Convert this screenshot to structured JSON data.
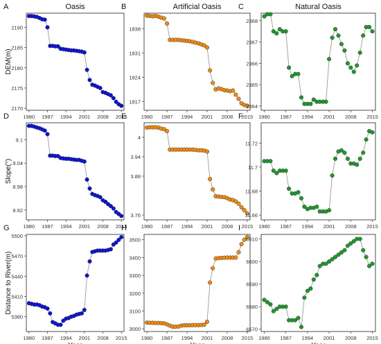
{
  "colors": {
    "oasis": "#0b12d6",
    "artificial": "#f28c0f",
    "natural": "#1d9a2c",
    "line": "#9a9a9a",
    "frame": "#222222"
  },
  "columns": [
    "Oasis",
    "Artificial Oasis",
    "Natural Oasis"
  ],
  "row_labels": [
    "DEM(m)",
    "Slope(°)",
    "Distance to River(m)"
  ],
  "xlabel": "Year",
  "x_ticks": [
    1980,
    1987,
    1994,
    2001,
    2008,
    2015
  ],
  "chart_data": [
    {
      "panel": "A",
      "type": "scatter",
      "title": "Oasis",
      "ylabel": "DEM(m)",
      "xlabel": "",
      "xlim": [
        1979,
        2016
      ],
      "ylim": [
        2169.5,
        2193.5
      ],
      "y_ticks": [
        2170,
        2175,
        2180,
        2185,
        2190
      ],
      "color": "oasis",
      "x": [
        1980,
        1981,
        1982,
        1983,
        1984,
        1985,
        1986,
        1987,
        1988,
        1989,
        1990,
        1991,
        1992,
        1993,
        1994,
        1995,
        1996,
        1997,
        1998,
        1999,
        2000,
        2001,
        2002,
        2003,
        2004,
        2005,
        2006,
        2007,
        2008,
        2009,
        2010,
        2011,
        2012,
        2013,
        2014,
        2015
      ],
      "y": [
        2192.8,
        2192.8,
        2192.7,
        2192.6,
        2192.3,
        2192.0,
        2191.9,
        2190.0,
        2185.4,
        2185.4,
        2185.3,
        2185.3,
        2184.7,
        2184.6,
        2184.5,
        2184.4,
        2184.3,
        2184.3,
        2184.2,
        2184.1,
        2184.0,
        2183.8,
        2179.5,
        2177.0,
        2175.8,
        2175.6,
        2175.3,
        2175.0,
        2174.0,
        2173.8,
        2173.5,
        2173.2,
        2172.5,
        2171.6,
        2171.0,
        2170.6
      ]
    },
    {
      "panel": "B",
      "type": "scatter",
      "title": "Artificial Oasis",
      "ylabel": "",
      "xlabel": "",
      "xlim": [
        1979,
        2016
      ],
      "ylim": [
        1814.5,
        1842.5
      ],
      "y_ticks": [
        1817,
        1824,
        1831,
        1838
      ],
      "color": "artificial",
      "x": [
        1980,
        1981,
        1982,
        1983,
        1984,
        1985,
        1986,
        1987,
        1988,
        1989,
        1990,
        1991,
        1992,
        1993,
        1994,
        1995,
        1996,
        1997,
        1998,
        1999,
        2000,
        2001,
        2002,
        2003,
        2004,
        2005,
        2006,
        2007,
        2008,
        2009,
        2010,
        2011,
        2012,
        2013,
        2014,
        2015
      ],
      "y": [
        1841.8,
        1841.7,
        1841.6,
        1841.7,
        1841.5,
        1841.2,
        1841.0,
        1839.5,
        1834.8,
        1834.8,
        1834.8,
        1834.8,
        1834.7,
        1834.6,
        1834.5,
        1834.4,
        1834.2,
        1834.0,
        1833.8,
        1833.5,
        1833.2,
        1832.6,
        1826.0,
        1822.4,
        1820.5,
        1820.8,
        1820.6,
        1820.3,
        1820.2,
        1820.0,
        1820.2,
        1819.0,
        1817.8,
        1816.5,
        1816.0,
        1815.8
      ]
    },
    {
      "panel": "C",
      "type": "scatter",
      "title": "Natural Oasis",
      "ylabel": "",
      "xlabel": "",
      "xlim": [
        1979,
        2016
      ],
      "ylim": [
        2363.8,
        2368.35
      ],
      "y_ticks": [
        2364,
        2365,
        2366,
        2367,
        2368
      ],
      "color": "natural",
      "x": [
        1980,
        1981,
        1982,
        1983,
        1984,
        1985,
        1986,
        1987,
        1988,
        1989,
        1990,
        1991,
        1992,
        1993,
        1994,
        1995,
        1996,
        1997,
        1998,
        1999,
        2000,
        2001,
        2002,
        2003,
        2004,
        2005,
        2006,
        2007,
        2008,
        2009,
        2010,
        2011,
        2012,
        2013,
        2014,
        2015
      ],
      "y": [
        2368.2,
        2368.3,
        2368.3,
        2367.5,
        2367.4,
        2367.6,
        2367.5,
        2367.5,
        2365.8,
        2365.4,
        2365.5,
        2365.5,
        2364.4,
        2364.1,
        2364.1,
        2364.1,
        2364.3,
        2364.2,
        2364.2,
        2364.2,
        2364.2,
        2366.2,
        2367.2,
        2367.6,
        2367.3,
        2366.9,
        2366.6,
        2366.0,
        2365.8,
        2365.6,
        2365.9,
        2366.5,
        2367.3,
        2367.7,
        2367.7,
        2367.5
      ]
    },
    {
      "panel": "D",
      "type": "scatter",
      "title": "",
      "ylabel": "Slope(°)",
      "xlabel": "",
      "xlim": [
        1979,
        2016
      ],
      "ylim": [
        8.895,
        9.143
      ],
      "y_ticks": [
        8.92,
        8.98,
        9.04,
        9.1
      ],
      "color": "oasis",
      "x": [
        1980,
        1981,
        1982,
        1983,
        1984,
        1985,
        1986,
        1987,
        1988,
        1989,
        1990,
        1991,
        1992,
        1993,
        1994,
        1995,
        1996,
        1997,
        1998,
        1999,
        2000,
        2001,
        2002,
        2003,
        2004,
        2005,
        2006,
        2007,
        2008,
        2009,
        2010,
        2011,
        2012,
        2013,
        2014,
        2015
      ],
      "y": [
        9.135,
        9.135,
        9.133,
        9.131,
        9.129,
        9.126,
        9.123,
        9.114,
        9.059,
        9.059,
        9.058,
        9.058,
        9.053,
        9.052,
        9.051,
        9.051,
        9.05,
        9.049,
        9.048,
        9.048,
        9.046,
        9.044,
        8.998,
        8.975,
        8.961,
        8.958,
        8.956,
        8.953,
        8.945,
        8.941,
        8.935,
        8.93,
        8.924,
        8.915,
        8.91,
        8.905
      ]
    },
    {
      "panel": "E",
      "type": "scatter",
      "title": "",
      "ylabel": "",
      "xlabel": "",
      "xlim": [
        1979,
        2016
      ],
      "ylim": [
        3.745,
        4.045
      ],
      "y_ticks": [
        3.76,
        3.88,
        3.94,
        4.0
      ],
      "color": "artificial",
      "x": [
        1980,
        1981,
        1982,
        1983,
        1984,
        1985,
        1986,
        1987,
        1988,
        1989,
        1990,
        1991,
        1992,
        1993,
        1994,
        1995,
        1996,
        1997,
        1998,
        1999,
        2000,
        2001,
        2002,
        2003,
        2004,
        2005,
        2006,
        2007,
        2008,
        2009,
        2010,
        2011,
        2012,
        2013,
        2014,
        2015
      ],
      "y": [
        4.03,
        4.031,
        4.031,
        4.031,
        4.03,
        4.027,
        4.025,
        4.019,
        3.962,
        3.962,
        3.962,
        3.962,
        3.962,
        3.962,
        3.962,
        3.962,
        3.962,
        3.961,
        3.96,
        3.96,
        3.959,
        3.956,
        3.871,
        3.839,
        3.818,
        3.817,
        3.816,
        3.815,
        3.812,
        3.808,
        3.806,
        3.802,
        3.795,
        3.784,
        3.775,
        3.765
      ]
    },
    {
      "panel": "F",
      "type": "scatter",
      "title": "",
      "ylabel": "",
      "xlabel": "",
      "xlim": [
        1979,
        2016
      ],
      "ylim": [
        11.656,
        11.737
      ],
      "y_ticks": [
        11.66,
        11.68,
        11.7,
        11.72
      ],
      "color": "natural",
      "x": [
        1980,
        1981,
        1982,
        1983,
        1984,
        1985,
        1986,
        1987,
        1988,
        1989,
        1990,
        1991,
        1992,
        1993,
        1994,
        1995,
        1996,
        1997,
        1998,
        1999,
        2000,
        2001,
        2002,
        2003,
        2004,
        2005,
        2006,
        2007,
        2008,
        2009,
        2010,
        2011,
        2012,
        2013,
        2014,
        2015
      ],
      "y": [
        11.705,
        11.705,
        11.705,
        11.697,
        11.695,
        11.697,
        11.697,
        11.697,
        11.682,
        11.678,
        11.678,
        11.679,
        11.674,
        11.667,
        11.665,
        11.666,
        11.666,
        11.667,
        11.663,
        11.663,
        11.663,
        11.664,
        11.693,
        11.707,
        11.713,
        11.714,
        11.712,
        11.707,
        11.703,
        11.703,
        11.702,
        11.707,
        11.712,
        11.723,
        11.73,
        11.729
      ]
    },
    {
      "panel": "G",
      "type": "scatter",
      "title": "",
      "ylabel": "Distance to River(m)",
      "xlabel": "Year",
      "xlim": [
        1979,
        2016
      ],
      "ylim": [
        5358,
        5502
      ],
      "y_ticks": [
        5380,
        5410,
        5440,
        5470,
        5500
      ],
      "color": "oasis",
      "x": [
        1980,
        1981,
        1982,
        1983,
        1984,
        1985,
        1986,
        1987,
        1988,
        1989,
        1990,
        1991,
        1992,
        1993,
        1994,
        1995,
        1996,
        1997,
        1998,
        1999,
        2000,
        2001,
        2002,
        2003,
        2004,
        2005,
        2006,
        2007,
        2008,
        2009,
        2010,
        2011,
        2012,
        2013,
        2014,
        2015
      ],
      "y": [
        5400,
        5399,
        5398,
        5398,
        5397,
        5395,
        5394,
        5392,
        5385,
        5372,
        5370,
        5368,
        5368,
        5374,
        5377,
        5378,
        5380,
        5381,
        5383,
        5384,
        5385,
        5390,
        5441,
        5462,
        5476,
        5477,
        5478,
        5478,
        5478,
        5478,
        5479,
        5480,
        5487,
        5490,
        5494,
        5498
      ]
    },
    {
      "panel": "H",
      "type": "scatter",
      "title": "",
      "ylabel": "",
      "xlabel": "Year",
      "xlim": [
        1979,
        2016
      ],
      "ylim": [
        2985,
        3530
      ],
      "y_ticks": [
        3000,
        3100,
        3200,
        3300,
        3400,
        3500
      ],
      "color": "artificial",
      "x": [
        1980,
        1981,
        1982,
        1983,
        1984,
        1985,
        1986,
        1987,
        1988,
        1989,
        1990,
        1991,
        1992,
        1993,
        1994,
        1995,
        1996,
        1997,
        1998,
        1999,
        2000,
        2001,
        2002,
        2003,
        2004,
        2005,
        2006,
        2007,
        2008,
        2009,
        2010,
        2011,
        2012,
        2013,
        2014,
        2015
      ],
      "y": [
        3035,
        3034,
        3034,
        3033,
        3033,
        3032,
        3031,
        3025,
        3018,
        3012,
        3012,
        3013,
        3018,
        3020,
        3020,
        3020,
        3021,
        3021,
        3021,
        3022,
        3023,
        3040,
        3260,
        3340,
        3395,
        3397,
        3398,
        3399,
        3400,
        3400,
        3400,
        3400,
        3430,
        3475,
        3500,
        3515
      ]
    },
    {
      "panel": "I",
      "type": "scatter",
      "title": "",
      "ylabel": "",
      "xlabel": "Year",
      "xlim": [
        1979,
        2016
      ],
      "ylim": [
        6569,
        6612
      ],
      "y_ticks": [
        6570,
        6580,
        6590,
        6600,
        6610
      ],
      "color": "natural",
      "x": [
        1980,
        1981,
        1982,
        1983,
        1984,
        1985,
        1986,
        1987,
        1988,
        1989,
        1990,
        1991,
        1992,
        1993,
        1994,
        1995,
        1996,
        1997,
        1998,
        1999,
        2000,
        2001,
        2002,
        2003,
        2004,
        2005,
        2006,
        2007,
        2008,
        2009,
        2010,
        2011,
        2012,
        2013,
        2014,
        2015
      ],
      "y": [
        6583,
        6582,
        6581,
        6578,
        6579,
        6580,
        6580,
        6580,
        6574,
        6574,
        6574,
        6575,
        6571,
        6584,
        6587,
        6588,
        6592,
        6594,
        6598,
        6599,
        6599,
        6600,
        6601,
        6602,
        6603,
        6604,
        6605,
        6607,
        6608,
        6609,
        6610,
        6610,
        6605,
        6602,
        6598,
        6599
      ]
    }
  ]
}
